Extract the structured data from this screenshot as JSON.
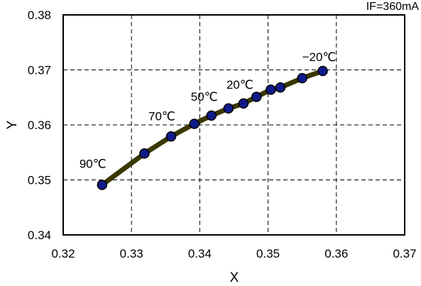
{
  "chart_data": {
    "type": "line",
    "title": "",
    "xlabel": "X",
    "ylabel": "Y",
    "xlim": [
      0.32,
      0.37
    ],
    "ylim": [
      0.34,
      0.38
    ],
    "xticks": [
      "0.32",
      "0.33",
      "0.34",
      "0.35",
      "0.36",
      "0.37"
    ],
    "yticks": [
      "0.34",
      "0.35",
      "0.36",
      "0.37",
      "0.38"
    ],
    "grid": "dashed",
    "note": "IF=360mA",
    "colors": {
      "line": "#3a3800",
      "marker_fill": "#101a8a",
      "marker_edge": "#000000",
      "grid": "#000000"
    },
    "series": [
      {
        "x": [
          0.3257,
          0.3319,
          0.3358,
          0.3392,
          0.3417,
          0.3442,
          0.3464,
          0.3483,
          0.3504,
          0.3518,
          0.355,
          0.358
        ],
        "y": [
          0.3491,
          0.3548,
          0.3579,
          0.3602,
          0.3617,
          0.363,
          0.3639,
          0.3651,
          0.3664,
          0.3668,
          0.3685,
          0.3698
        ]
      }
    ],
    "annotations": [
      {
        "text": "90℃",
        "x": 0.3257,
        "y": 0.3491
      },
      {
        "text": "70℃",
        "x": 0.3358,
        "y": 0.3579
      },
      {
        "text": "50℃",
        "x": 0.3417,
        "y": 0.3617
      },
      {
        "text": "20℃",
        "x": 0.3464,
        "y": 0.3639
      },
      {
        "text": "−20℃",
        "x": 0.358,
        "y": 0.3698
      }
    ]
  }
}
